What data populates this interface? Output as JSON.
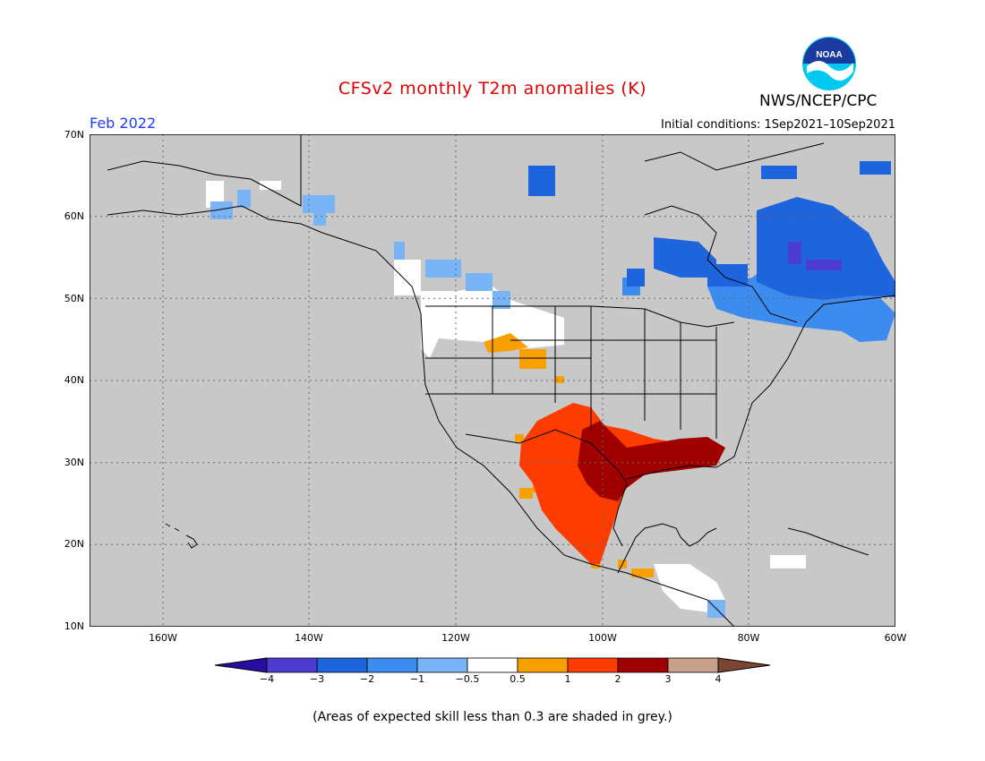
{
  "title": "CFSv2 monthly T2m anomalies (K)",
  "forecast_month": "Feb 2022",
  "agency": "NWS/NCEP/CPC",
  "logo_text": "NOAA",
  "initial_conditions": "Initial conditions: 1Sep2021–10Sep2021",
  "lat_labels": [
    "70N",
    "60N",
    "50N",
    "40N",
    "30N",
    "20N",
    "10N"
  ],
  "lon_labels": [
    "160W",
    "140W",
    "120W",
    "100W",
    "80W",
    "60W"
  ],
  "colorbar": {
    "labels": [
      "−4",
      "−3",
      "−2",
      "−1",
      "−0.5",
      "0.5",
      "1",
      "2",
      "3",
      "4"
    ],
    "colors": [
      "#2a0ca0",
      "#4c3cd0",
      "#1e64dc",
      "#3c8cf0",
      "#78b4f6",
      "#ffffff",
      "#f7a000",
      "#ff3c00",
      "#a00000",
      "#c8a08c",
      "#7a4632"
    ]
  },
  "footnote": "(Areas of expected skill less than 0.3 are shaded in grey.)",
  "colors": {
    "title": "#e00000",
    "month": "#1e3cff",
    "background_grey": "#c8c8c8"
  }
}
